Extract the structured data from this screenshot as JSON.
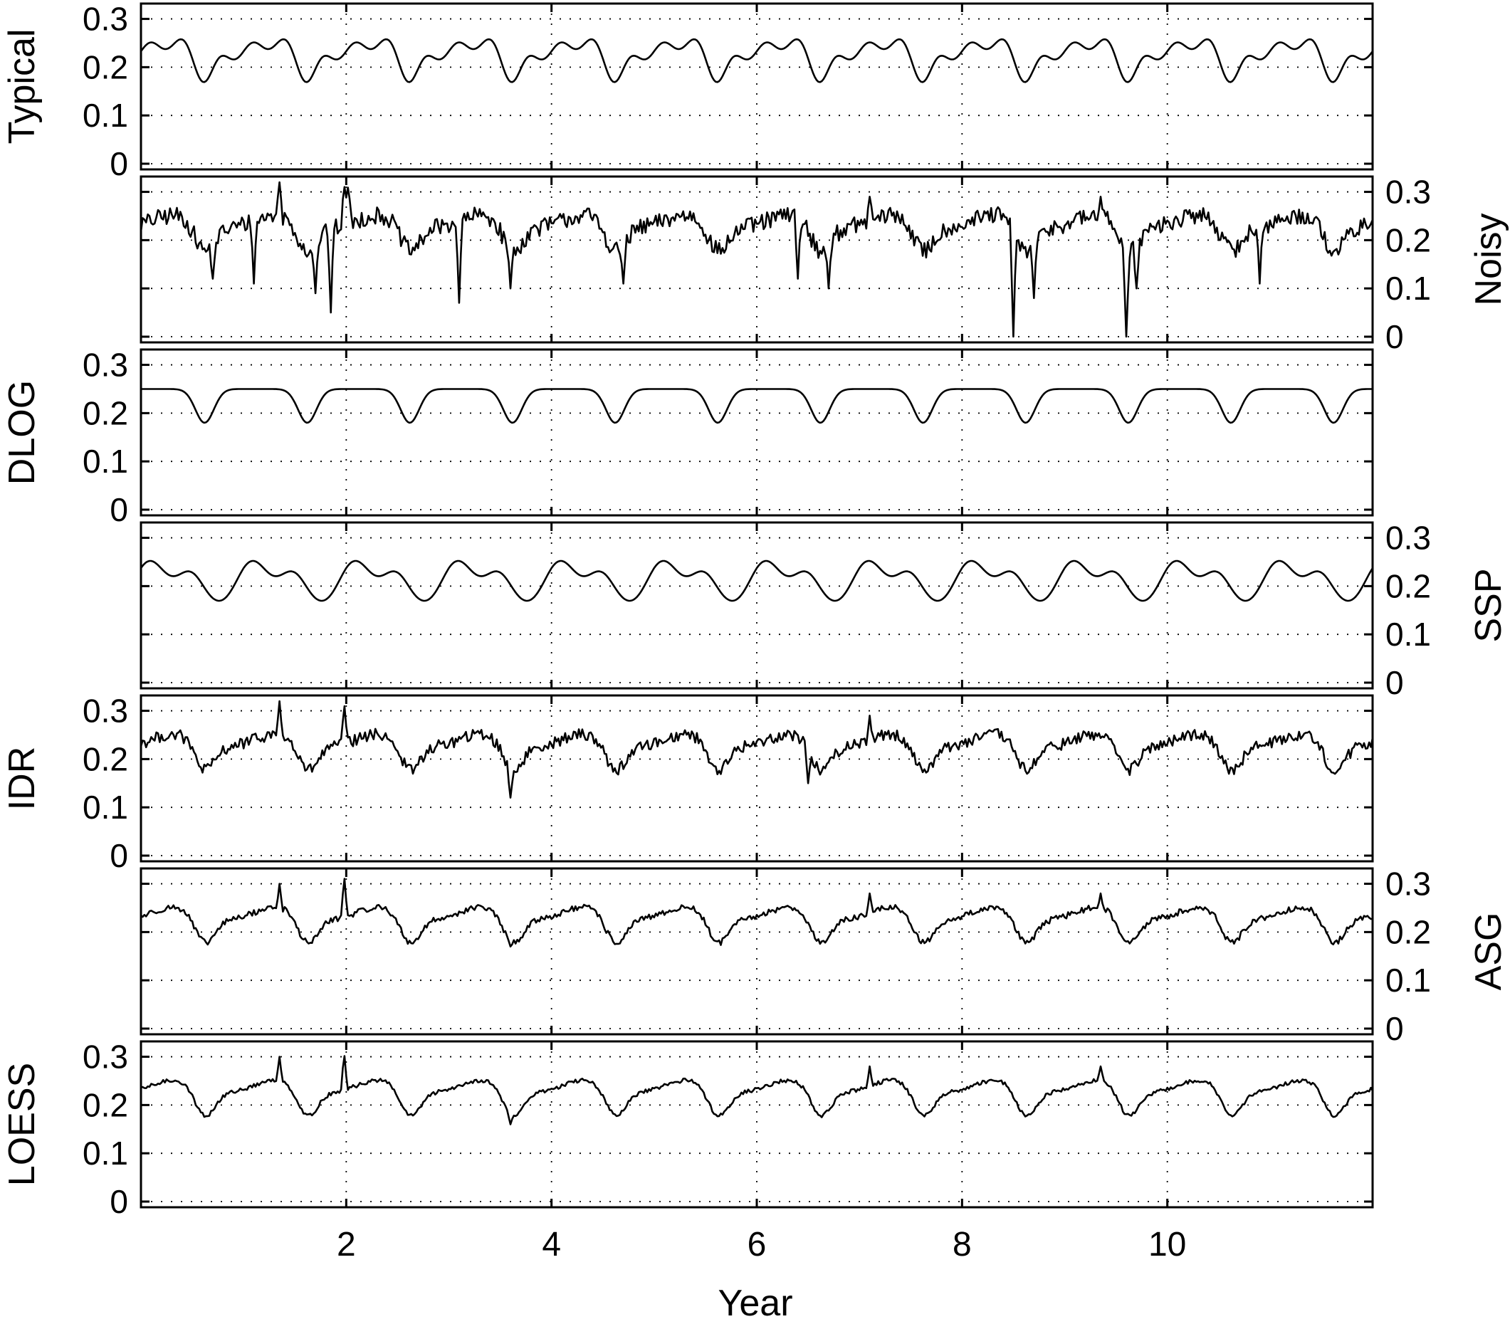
{
  "chart_data": {
    "type": "line",
    "xlabel": "Year",
    "xlim": [
      0,
      12
    ],
    "x_ticks": [
      2,
      4,
      6,
      8,
      10
    ],
    "x_tick_labels": [
      "2",
      "4",
      "6",
      "8",
      "10"
    ],
    "ylim": [
      0,
      0.32
    ],
    "y_ticks": [
      0,
      0.1,
      0.2,
      0.3
    ],
    "y_tick_labels": [
      "0",
      "0.1",
      "0.2",
      "0.3"
    ],
    "grid": true,
    "panels": [
      {
        "ylabel": "Typical",
        "axis_side": "left",
        "style": "typical",
        "baseline": 0.24,
        "base_amp": 0.02,
        "dip_depth": 0.06,
        "noise": 0.0,
        "spikes": []
      },
      {
        "ylabel": "Noisy",
        "axis_side": "right",
        "style": "noisy",
        "baseline": 0.24,
        "base_amp": 0.02,
        "dip_depth": 0.06,
        "noise": 0.018,
        "spikes": [
          [
            0.7,
            0.12
          ],
          [
            1.1,
            0.11
          ],
          [
            1.7,
            0.09
          ],
          [
            1.85,
            0.05
          ],
          [
            3.1,
            0.07
          ],
          [
            3.6,
            0.1
          ],
          [
            4.7,
            0.11
          ],
          [
            6.4,
            0.12
          ],
          [
            6.7,
            0.1
          ],
          [
            8.5,
            0.0
          ],
          [
            8.7,
            0.08
          ],
          [
            9.6,
            0.0
          ],
          [
            9.7,
            0.1
          ],
          [
            10.9,
            0.11
          ],
          [
            1.35,
            0.32
          ],
          [
            1.98,
            0.32
          ],
          [
            2.02,
            0.32
          ],
          [
            7.1,
            0.29
          ],
          [
            9.35,
            0.29
          ]
        ]
      },
      {
        "ylabel": "DLOG",
        "axis_side": "left",
        "style": "dlog",
        "baseline": 0.25,
        "base_amp": 0.0,
        "dip_depth": 0.07,
        "noise": 0.0,
        "spikes": []
      },
      {
        "ylabel": "SSP",
        "axis_side": "right",
        "style": "ssp",
        "baseline": 0.23,
        "base_amp": 0.03,
        "dip_depth": 0.05,
        "noise": 0.0,
        "spikes": []
      },
      {
        "ylabel": "IDR",
        "axis_side": "left",
        "style": "idr",
        "baseline": 0.24,
        "base_amp": 0.02,
        "dip_depth": 0.06,
        "noise": 0.012,
        "spikes": [
          [
            1.35,
            0.32
          ],
          [
            1.98,
            0.32
          ],
          [
            3.6,
            0.12
          ],
          [
            6.5,
            0.15
          ],
          [
            7.1,
            0.29
          ]
        ]
      },
      {
        "ylabel": "ASG",
        "axis_side": "right",
        "style": "asg",
        "baseline": 0.24,
        "base_amp": 0.02,
        "dip_depth": 0.06,
        "noise": 0.006,
        "spikes": [
          [
            1.35,
            0.3
          ],
          [
            1.98,
            0.32
          ],
          [
            3.6,
            0.17
          ],
          [
            7.1,
            0.28
          ],
          [
            9.35,
            0.28
          ]
        ]
      },
      {
        "ylabel": "LOESS",
        "axis_side": "left",
        "style": "loess",
        "baseline": 0.24,
        "base_amp": 0.02,
        "dip_depth": 0.06,
        "noise": 0.004,
        "spikes": [
          [
            1.35,
            0.3
          ],
          [
            1.98,
            0.31
          ],
          [
            3.6,
            0.16
          ],
          [
            7.1,
            0.28
          ],
          [
            9.35,
            0.28
          ]
        ]
      }
    ]
  }
}
